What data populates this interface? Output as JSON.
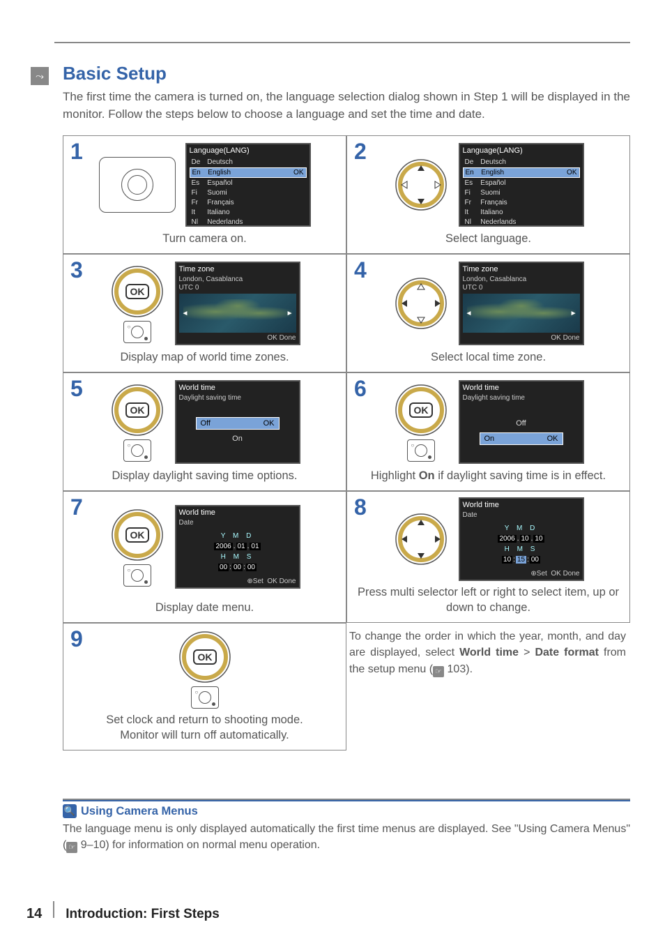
{
  "page": {
    "title": "Basic Setup",
    "intro": "The first time the camera is turned on, the language selection dialog shown in Step 1 will be displayed in the monitor.  Follow the steps below to choose a language and set the time and date.",
    "page_number": "14",
    "footer_section": "Introduction: First Steps"
  },
  "colors": {
    "accent": "#3463a8",
    "rule": "#888888",
    "text": "#555555"
  },
  "languages": {
    "screen_title": "Language(LANG)",
    "items": [
      {
        "code": "De",
        "label": "Deutsch"
      },
      {
        "code": "En",
        "label": "English"
      },
      {
        "code": "Es",
        "label": "Español"
      },
      {
        "code": "Fi",
        "label": "Suomi"
      },
      {
        "code": "Fr",
        "label": "Français"
      },
      {
        "code": "It",
        "label": "Italiano"
      },
      {
        "code": "Nl",
        "label": "Nederlands"
      }
    ],
    "selected_index": 1,
    "ok_glyph": "OK"
  },
  "timezone": {
    "screen_title": "Time zone",
    "city": "London, Casablanca",
    "utc": "UTC 0",
    "done_label": "OK Done"
  },
  "dst": {
    "screen_title": "World time",
    "subtitle": "Daylight saving time",
    "off_label": "Off",
    "on_label": "On",
    "ok_glyph": "OK"
  },
  "date": {
    "screen_title": "World time",
    "subtitle": "Date",
    "header": "Y  M  D",
    "step7": {
      "ymd": [
        "2006",
        "01",
        "01"
      ],
      "hms": [
        "00",
        "00",
        "00"
      ]
    },
    "step8": {
      "ymd": [
        "2006",
        "10",
        "10"
      ],
      "hms": [
        "10",
        "15",
        "00"
      ],
      "highlight_index": 4
    },
    "hms_header": "H  M  S",
    "set_label": "⊕Set",
    "done_label": "OK Done"
  },
  "steps": {
    "1": {
      "caption": "Turn camera on."
    },
    "2": {
      "caption": "Select language."
    },
    "3": {
      "caption": "Display map of world time zones."
    },
    "4": {
      "caption": "Select local time zone."
    },
    "5": {
      "caption": "Display daylight saving time options."
    },
    "6": {
      "caption_pre": "Highlight ",
      "caption_bold": "On",
      "caption_post": " if daylight saving time is in effect."
    },
    "7": {
      "caption": "Display date menu."
    },
    "8": {
      "caption": "Press multi selector left or right to select item, up or down to change."
    },
    "9": {
      "caption_l1": "Set clock and return to shooting mode.",
      "caption_l2": "Monitor will turn off automatically."
    }
  },
  "note_after_8": {
    "pre": "To change the order in which the year, month, and day are displayed, select ",
    "b1": "World time",
    "gt": " > ",
    "b2": "Date format",
    "post": " from the setup menu (",
    "ref": "103",
    "tail": ")."
  },
  "bottom_note": {
    "title": "Using Camera Menus",
    "body_pre": "The language menu is only displayed automatically the first time menus are displayed.  See \"Using Camera Menus\" (",
    "ref": "9–10",
    "body_post": ") for information on normal menu operation."
  }
}
